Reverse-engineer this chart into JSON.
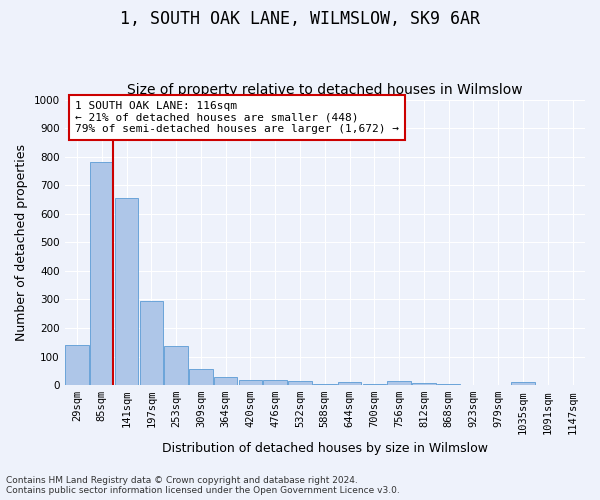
{
  "title": "1, SOUTH OAK LANE, WILMSLOW, SK9 6AR",
  "subtitle": "Size of property relative to detached houses in Wilmslow",
  "xlabel": "Distribution of detached houses by size in Wilmslow",
  "ylabel": "Number of detached properties",
  "categories": [
    "29sqm",
    "85sqm",
    "141sqm",
    "197sqm",
    "253sqm",
    "309sqm",
    "364sqm",
    "420sqm",
    "476sqm",
    "532sqm",
    "588sqm",
    "644sqm",
    "700sqm",
    "756sqm",
    "812sqm",
    "868sqm",
    "923sqm",
    "979sqm",
    "1035sqm",
    "1091sqm",
    "1147sqm"
  ],
  "values": [
    140,
    780,
    655,
    295,
    138,
    55,
    28,
    18,
    18,
    13,
    5,
    10,
    5,
    13,
    8,
    5,
    0,
    0,
    10,
    0,
    0
  ],
  "bar_color": "#aec6e8",
  "bar_edge_color": "#5b9bd5",
  "vline_color": "#cc0000",
  "annotation_text": "1 SOUTH OAK LANE: 116sqm\n← 21% of detached houses are smaller (448)\n79% of semi-detached houses are larger (1,672) →",
  "annotation_box_color": "#ffffff",
  "annotation_box_edge_color": "#cc0000",
  "ylim": [
    0,
    1000
  ],
  "yticks": [
    0,
    100,
    200,
    300,
    400,
    500,
    600,
    700,
    800,
    900,
    1000
  ],
  "footnote1": "Contains HM Land Registry data © Crown copyright and database right 2024.",
  "footnote2": "Contains public sector information licensed under the Open Government Licence v3.0.",
  "bg_color": "#eef2fb",
  "grid_color": "#ffffff",
  "title_fontsize": 12,
  "subtitle_fontsize": 10,
  "axis_label_fontsize": 9,
  "tick_fontsize": 7.5,
  "footnote_fontsize": 6.5
}
